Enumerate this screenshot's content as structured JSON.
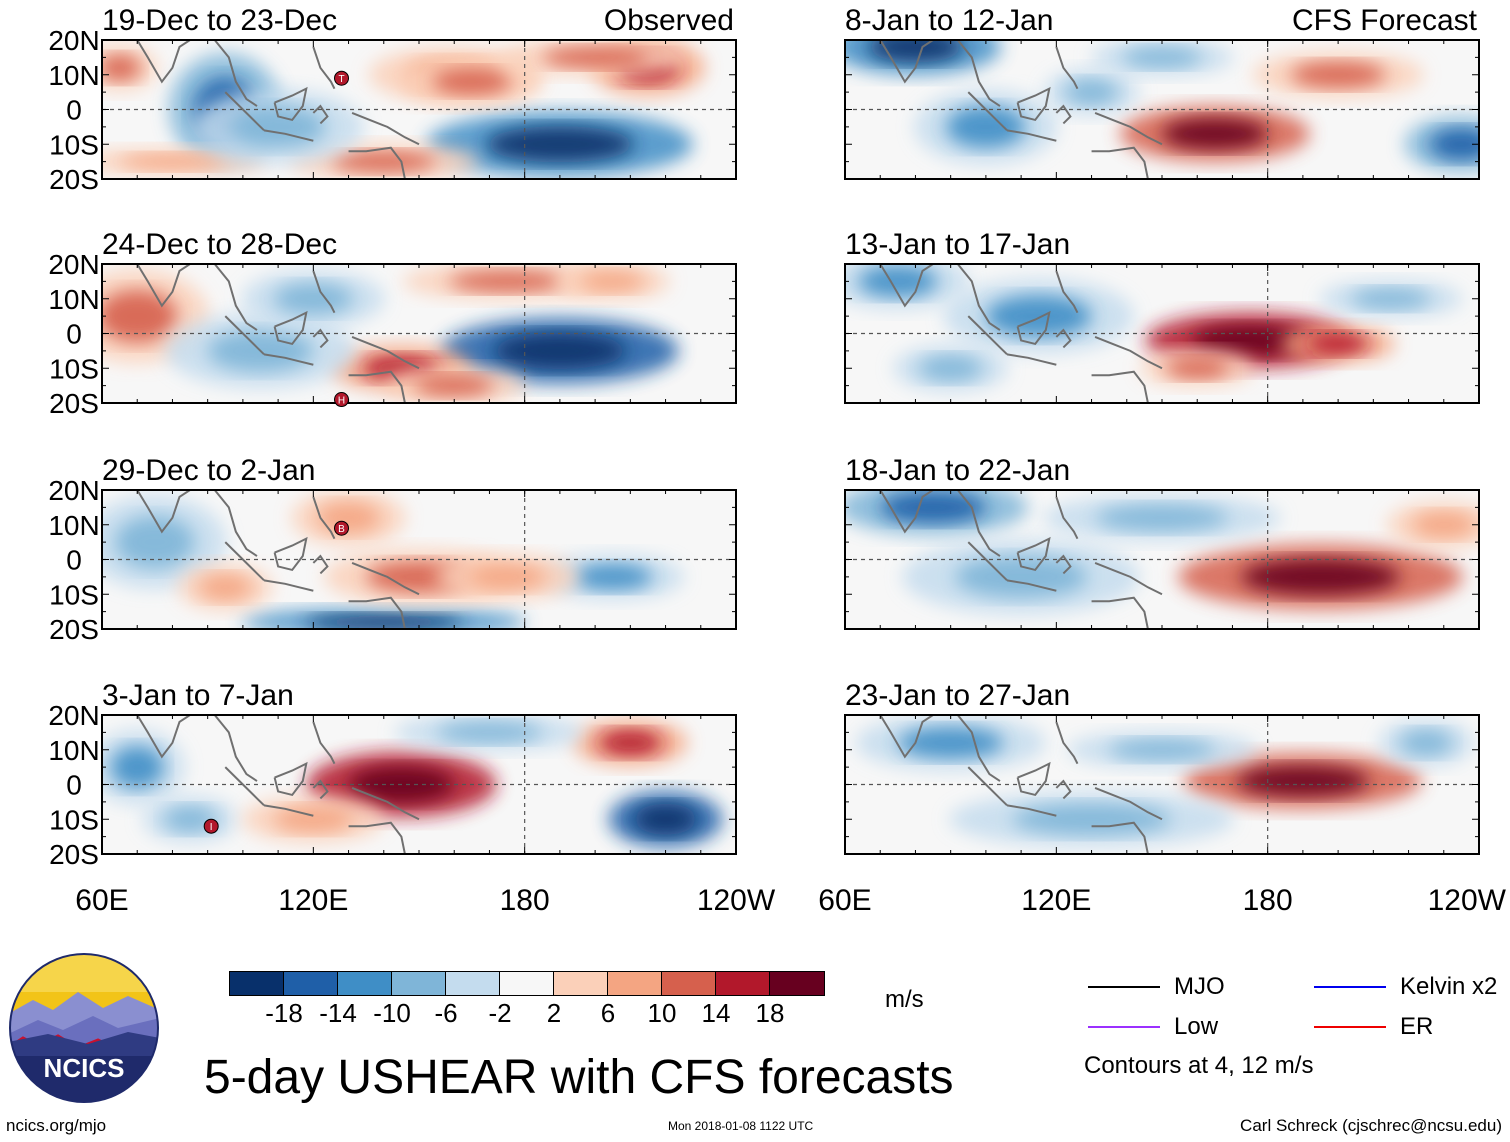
{
  "chart_data": {
    "type": "heatmap",
    "title": "5-day USHEAR with CFS forecasts",
    "units": "m/s",
    "x_ticks": [
      "60E",
      "120E",
      "180",
      "120W"
    ],
    "y_ticks": [
      "20N",
      "10N",
      "0",
      "10S",
      "20S"
    ],
    "panel_groups": [
      {
        "name": "Observed",
        "label": "Observed"
      },
      {
        "name": "CFS Forecast",
        "label": "CFS Forecast"
      }
    ],
    "panels": [
      {
        "period": "19-Dec to 23-Dec",
        "group": "Observed",
        "storms": [
          "T"
        ],
        "blobs": [
          [
            95,
            0.0,
            -10,
            12,
            -16
          ],
          [
            160,
            10,
            18,
            6,
            9
          ],
          [
            190,
            -10,
            28,
            7,
            -22
          ],
          [
            215,
            12,
            12,
            6,
            14
          ],
          [
            140,
            -15,
            20,
            4,
            10
          ],
          [
            165,
            8,
            15,
            5,
            12
          ],
          [
            65,
            12,
            8,
            5,
            13
          ],
          [
            80,
            -15,
            20,
            3,
            9
          ],
          [
            110,
            -5,
            18,
            8,
            -8
          ],
          [
            200,
            15,
            20,
            4,
            10
          ]
        ]
      },
      {
        "period": "24-Dec to 28-Dec",
        "group": "Observed",
        "storms": [
          "H"
        ],
        "blobs": [
          [
            190,
            -5,
            25,
            7,
            -24
          ],
          [
            145,
            -10,
            15,
            5,
            16
          ],
          [
            175,
            15,
            22,
            4,
            10
          ],
          [
            70,
            5,
            15,
            10,
            12
          ],
          [
            105,
            -5,
            20,
            8,
            -9
          ],
          [
            120,
            10,
            15,
            6,
            -7
          ],
          [
            160,
            -15,
            15,
            4,
            12
          ],
          [
            205,
            15,
            12,
            4,
            8
          ]
        ]
      },
      {
        "period": "29-Dec to 2-Jan",
        "group": "Observed",
        "storms": [
          "B"
        ],
        "blobs": [
          [
            140,
            -18,
            30,
            3,
            -20
          ],
          [
            205,
            -5,
            15,
            5,
            -14
          ],
          [
            150,
            -5,
            20,
            6,
            10
          ],
          [
            130,
            12,
            12,
            6,
            8
          ],
          [
            75,
            5,
            15,
            10,
            -8
          ],
          [
            95,
            -8,
            10,
            5,
            9
          ],
          [
            175,
            -5,
            15,
            5,
            8
          ]
        ]
      },
      {
        "period": "3-Jan to 7-Jan",
        "group": "Observed",
        "storms": [
          "I"
        ],
        "blobs": [
          [
            145,
            0,
            20,
            7,
            22
          ],
          [
            220,
            -10,
            12,
            6,
            -24
          ],
          [
            70,
            5,
            10,
            8,
            -14
          ],
          [
            210,
            12,
            12,
            5,
            14
          ],
          [
            85,
            -10,
            10,
            5,
            -10
          ],
          [
            170,
            15,
            20,
            4,
            -7
          ],
          [
            120,
            -10,
            15,
            5,
            8
          ]
        ]
      },
      {
        "period": "8-Jan to 12-Jan",
        "group": "CFS Forecast",
        "storms": [],
        "blobs": [
          [
            165,
            -7,
            20,
            6,
            20
          ],
          [
            80,
            18,
            18,
            6,
            -22
          ],
          [
            200,
            10,
            18,
            5,
            12
          ],
          [
            100,
            -5,
            15,
            8,
            -12
          ],
          [
            235,
            -10,
            12,
            6,
            -16
          ],
          [
            130,
            5,
            10,
            5,
            -8
          ],
          [
            150,
            15,
            15,
            4,
            -7
          ]
        ]
      },
      {
        "period": "13-Jan to 17-Jan",
        "group": "CFS Forecast",
        "storms": [],
        "blobs": [
          [
            175,
            -2,
            22,
            6,
            22
          ],
          [
            200,
            -3,
            12,
            4,
            16
          ],
          [
            115,
            5,
            20,
            8,
            -12
          ],
          [
            75,
            15,
            15,
            6,
            -14
          ],
          [
            160,
            -10,
            12,
            4,
            12
          ],
          [
            215,
            10,
            15,
            4,
            -8
          ],
          [
            90,
            -10,
            12,
            5,
            -9
          ]
        ]
      },
      {
        "period": "18-Jan to 22-Jan",
        "group": "CFS Forecast",
        "storms": [],
        "blobs": [
          [
            195,
            -5,
            30,
            7,
            18
          ],
          [
            85,
            15,
            20,
            6,
            -16
          ],
          [
            110,
            -5,
            25,
            8,
            -10
          ],
          [
            150,
            12,
            25,
            5,
            -8
          ],
          [
            230,
            10,
            12,
            5,
            8
          ]
        ]
      },
      {
        "period": "23-Jan to 27-Jan",
        "group": "CFS Forecast",
        "storms": [],
        "blobs": [
          [
            190,
            1,
            25,
            6,
            20
          ],
          [
            90,
            12,
            20,
            6,
            -14
          ],
          [
            130,
            -10,
            30,
            6,
            -9
          ],
          [
            150,
            10,
            20,
            4,
            -7
          ],
          [
            225,
            12,
            10,
            5,
            -10
          ]
        ]
      }
    ],
    "colorbar": {
      "tick_labels": [
        "-18",
        "-14",
        "-10",
        "-6",
        "-2",
        "2",
        "6",
        "10",
        "14",
        "18"
      ],
      "colors": [
        "#08306b",
        "#1f5fa8",
        "#3f8ec6",
        "#7fb5d8",
        "#c4dcee",
        "#f7f7f7",
        "#fbd0b9",
        "#f4a582",
        "#d6604d",
        "#b2182b",
        "#67001f"
      ]
    },
    "legend": [
      {
        "name": "MJO",
        "color": "#000000"
      },
      {
        "name": "Kelvin x2",
        "color": "#0000ee"
      },
      {
        "name": "Low",
        "color": "#9b30ff"
      },
      {
        "name": "ER",
        "color": "#ee0000"
      }
    ],
    "contour_note": "Contours at 4, 12 m/s"
  },
  "footer": {
    "left": "ncics.org/mjo",
    "middle": "Mon 2018-01-08 1122 UTC",
    "right": "Carl Schreck (cjschrec@ncsu.edu)"
  },
  "logo": {
    "text": "NCICS"
  }
}
